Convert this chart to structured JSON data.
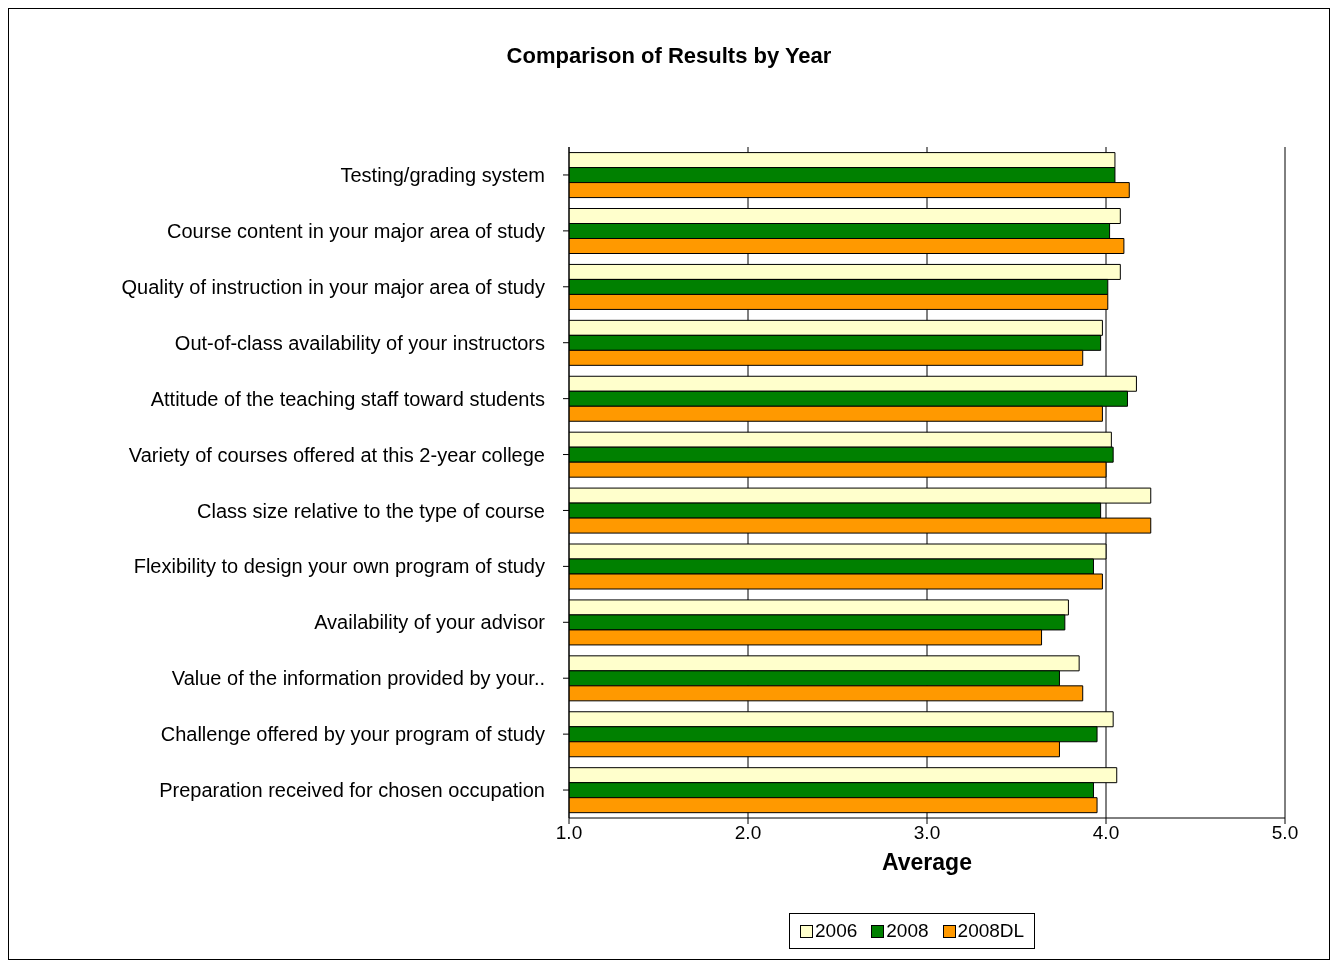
{
  "chart_data": {
    "type": "bar",
    "orientation": "horizontal",
    "title": "Comparison of Results by Year",
    "xlabel": "Average",
    "categories": [
      "Testing/grading system",
      "Course content in your major area of study",
      "Quality of instruction in your major area of study",
      "Out-of-class availability of your instructors",
      "Attitude of the teaching staff toward students",
      "Variety of courses offered at this 2-year college",
      "Class size relative to the type of course",
      "Flexibility to design your own program of study",
      "Availability of your advisor",
      "Value of the information provided by your..",
      "Challenge offered by your program of study",
      "Preparation received for chosen occupation"
    ],
    "series": [
      {
        "name": "2006",
        "color": "#ffffcc",
        "values": [
          4.05,
          4.08,
          4.08,
          3.98,
          4.17,
          4.03,
          4.25,
          4.0,
          3.79,
          3.85,
          4.04,
          4.06
        ]
      },
      {
        "name": "2008",
        "color": "#008000",
        "values": [
          4.05,
          4.02,
          4.01,
          3.97,
          4.12,
          4.04,
          3.97,
          3.93,
          3.77,
          3.74,
          3.95,
          3.93
        ]
      },
      {
        "name": "2008DL",
        "color": "#ff9900",
        "values": [
          4.13,
          4.1,
          4.01,
          3.87,
          3.98,
          4.0,
          4.25,
          3.98,
          3.64,
          3.87,
          3.74,
          3.95
        ]
      }
    ],
    "xlim": [
      1,
      5
    ],
    "xticks": [
      {
        "value": 1,
        "label": "1.0"
      },
      {
        "value": 2,
        "label": "2.0"
      },
      {
        "value": 3,
        "label": "3.0"
      },
      {
        "value": 4,
        "label": "4.0"
      },
      {
        "value": 5,
        "label": "5.0"
      }
    ],
    "grid": "x",
    "legend": "bottom"
  }
}
